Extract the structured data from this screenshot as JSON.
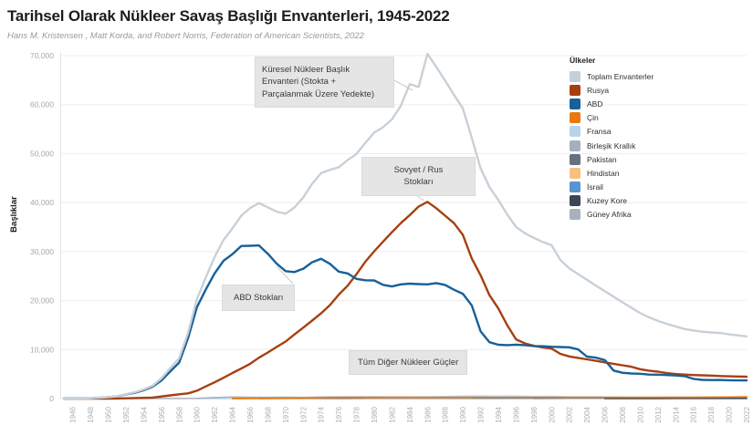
{
  "header": {
    "title": "Tarihsel Olarak Nükleer Savaş Başlığı Envanterleri, 1945-2022",
    "subtitle": "Hans M. Kristensen , Matt Korda, and Robert Norris, Federation of American Scientists, 2022"
  },
  "axes": {
    "y_label": "Başlıklar",
    "y_ticks": [
      "0",
      "10,000",
      "20,000",
      "30,000",
      "40,000",
      "50,000",
      "60,000",
      "70,000"
    ],
    "x_ticks": [
      "1946",
      "1948",
      "1950",
      "1952",
      "1954",
      "1956",
      "1958",
      "1960",
      "1962",
      "1964",
      "1966",
      "1968",
      "1970",
      "1972",
      "1974",
      "1976",
      "1978",
      "1980",
      "1982",
      "1984",
      "1986",
      "1988",
      "1990",
      "1992",
      "1994",
      "1996",
      "1998",
      "2000",
      "2002",
      "2004",
      "2006",
      "2008",
      "2010",
      "2012",
      "2014",
      "2016",
      "2018",
      "2020",
      "2022"
    ]
  },
  "legend": {
    "title": "Ülkeler"
  },
  "annotations": {
    "global": {
      "text": "Küresel Nükleer Başlık Envanteri (Stokta + Parçalanmak Üzere Yedekte)"
    },
    "soviet": {
      "text": "Sovyet / Rus Stokları"
    },
    "us": {
      "text": "ABD Stokları"
    },
    "others": {
      "text": "Tüm Diğer Nükleer Güçler"
    }
  },
  "chart_data": {
    "type": "line",
    "title": "Tarihsel Olarak Nükleer Savaş Başlığı Envanterleri, 1945-2022",
    "xlabel": "",
    "ylabel": "Başlıklar",
    "x_range": [
      1945,
      2022
    ],
    "ylim": [
      0,
      70000
    ],
    "grid": "horizontal",
    "legend_position": "right",
    "series": [
      {
        "id": "total",
        "label": "Toplam Envanterler",
        "color": "#c8d0d7",
        "width": 2.4,
        "start": 1945,
        "values": [
          2,
          9,
          13,
          50,
          171,
          304,
          463,
          891,
          1289,
          1853,
          2632,
          4128,
          6213,
          8224,
          13368,
          20253,
          24710,
          28892,
          32401,
          34714,
          37318,
          38900,
          39900,
          39040,
          38173,
          37741,
          38997,
          41074,
          43840,
          46009,
          46669,
          47214,
          48676,
          49937,
          52199,
          54308,
          55391,
          56988,
          59741,
          64200,
          63600,
          70374,
          67700,
          64900,
          62000,
          59239,
          53205,
          46963,
          43150,
          40554,
          37580,
          35026,
          33760,
          32811,
          31960,
          31294,
          28280,
          26570,
          25420,
          24237,
          23049,
          21929,
          20768,
          19640,
          18552,
          17451,
          16590,
          15850,
          15250,
          14700,
          14200,
          13890,
          13650,
          13500,
          13400,
          13100,
          12900,
          12705
        ]
      },
      {
        "id": "russia",
        "label": "Rusya",
        "color": "#a6400f",
        "width": 2.4,
        "start": 1945,
        "values": [
          0,
          0,
          0,
          0,
          1,
          5,
          25,
          50,
          120,
          150,
          200,
          426,
          660,
          869,
          1060,
          1605,
          2471,
          3322,
          4238,
          5221,
          6129,
          7089,
          8339,
          9399,
          10538,
          11643,
          13092,
          14478,
          15915,
          17385,
          19055,
          21205,
          23044,
          25393,
          27935,
          30062,
          32049,
          33952,
          35804,
          37431,
          39197,
          40159,
          38859,
          37333,
          35805,
          33417,
          28595,
          25155,
          21101,
          18399,
          14978,
          12085,
          11264,
          10764,
          10451,
          10201,
          9126,
          8600,
          8300,
          8000,
          7700,
          7400,
          7100,
          6800,
          6500,
          6000,
          5700,
          5500,
          5200,
          5000,
          4900,
          4800,
          4750,
          4700,
          4600,
          4550,
          4497,
          4477
        ]
      },
      {
        "id": "us",
        "label": "ABD",
        "color": "#17609a",
        "width": 2.4,
        "start": 1945,
        "values": [
          2,
          9,
          13,
          50,
          170,
          299,
          438,
          841,
          1169,
          1703,
          2422,
          3692,
          5543,
          7345,
          12298,
          18638,
          22229,
          25540,
          28133,
          29463,
          31139,
          31175,
          31255,
          29561,
          27552,
          26008,
          25830,
          26516,
          27835,
          28537,
          27519,
          25914,
          25542,
          24418,
          24138,
          24104,
          23208,
          22886,
          23305,
          23459,
          23368,
          23317,
          23575,
          23205,
          22217,
          21392,
          19008,
          13708,
          11511,
          10979,
          10904,
          11011,
          10903,
          10732,
          10685,
          10577,
          10526,
          10457,
          10027,
          8570,
          8360,
          7853,
          5709,
          5273,
          5113,
          5066,
          4897,
          4881,
          4804,
          4717,
          4571,
          4018,
          3822,
          3785,
          3805,
          3750,
          3708,
          3708
        ]
      },
      {
        "id": "china",
        "label": "Çin",
        "color": "#e9790e",
        "width": 1.7,
        "points": [
          [
            1964,
            1
          ],
          [
            1966,
            20
          ],
          [
            1968,
            35
          ],
          [
            1970,
            75
          ],
          [
            1972,
            100
          ],
          [
            1974,
            150
          ],
          [
            1976,
            185
          ],
          [
            1978,
            190
          ],
          [
            1980,
            205
          ],
          [
            1982,
            235
          ],
          [
            1984,
            240
          ],
          [
            1986,
            224
          ],
          [
            1988,
            230
          ],
          [
            1990,
            232
          ],
          [
            1995,
            234
          ],
          [
            2000,
            232
          ],
          [
            2005,
            235
          ],
          [
            2010,
            240
          ],
          [
            2015,
            260
          ],
          [
            2018,
            280
          ],
          [
            2020,
            320
          ],
          [
            2022,
            350
          ]
        ]
      },
      {
        "id": "france",
        "label": "Fransa",
        "color": "#b7d4ed",
        "width": 1.5,
        "points": [
          [
            1960,
            0
          ],
          [
            1964,
            4
          ],
          [
            1966,
            32
          ],
          [
            1970,
            36
          ],
          [
            1972,
            70
          ],
          [
            1974,
            145
          ],
          [
            1976,
            212
          ],
          [
            1978,
            228
          ],
          [
            1980,
            250
          ],
          [
            1982,
            274
          ],
          [
            1984,
            280
          ],
          [
            1986,
            355
          ],
          [
            1988,
            420
          ],
          [
            1990,
            505
          ],
          [
            1992,
            540
          ],
          [
            1994,
            512
          ],
          [
            1996,
            500
          ],
          [
            1998,
            450
          ],
          [
            2000,
            470
          ],
          [
            2002,
            350
          ],
          [
            2006,
            350
          ],
          [
            2010,
            300
          ],
          [
            2014,
            300
          ],
          [
            2018,
            300
          ],
          [
            2022,
            290
          ]
        ]
      },
      {
        "id": "uk",
        "label": "Birleşik Krallık",
        "color": "#a6b0bd",
        "width": 1.5,
        "points": [
          [
            1952,
            1
          ],
          [
            1954,
            5
          ],
          [
            1956,
            11
          ],
          [
            1958,
            22
          ],
          [
            1960,
            30
          ],
          [
            1962,
            205
          ],
          [
            1964,
            310
          ],
          [
            1966,
            270
          ],
          [
            1968,
            280
          ],
          [
            1970,
            280
          ],
          [
            1972,
            220
          ],
          [
            1974,
            325
          ],
          [
            1976,
            350
          ],
          [
            1980,
            350
          ],
          [
            1982,
            335
          ],
          [
            1984,
            320
          ],
          [
            1986,
            300
          ],
          [
            1990,
            300
          ],
          [
            1992,
            300
          ],
          [
            1994,
            250
          ],
          [
            1996,
            260
          ],
          [
            2000,
            280
          ],
          [
            2004,
            280
          ],
          [
            2006,
            225
          ],
          [
            2010,
            225
          ],
          [
            2014,
            215
          ],
          [
            2018,
            215
          ],
          [
            2022,
            225
          ]
        ]
      },
      {
        "id": "pakistan",
        "label": "Pakistan",
        "color": "#667180",
        "width": 1.5,
        "points": [
          [
            1998,
            5
          ],
          [
            2000,
            15
          ],
          [
            2002,
            28
          ],
          [
            2004,
            40
          ],
          [
            2006,
            55
          ],
          [
            2008,
            70
          ],
          [
            2010,
            90
          ],
          [
            2012,
            105
          ],
          [
            2014,
            120
          ],
          [
            2016,
            135
          ],
          [
            2018,
            150
          ],
          [
            2020,
            160
          ],
          [
            2022,
            165
          ]
        ]
      },
      {
        "id": "india",
        "label": "Hindistan",
        "color": "#f7c080",
        "width": 1.5,
        "points": [
          [
            1974,
            1
          ],
          [
            1980,
            3
          ],
          [
            1986,
            5
          ],
          [
            1990,
            7
          ],
          [
            1994,
            12
          ],
          [
            1998,
            16
          ],
          [
            2000,
            25
          ],
          [
            2002,
            35
          ],
          [
            2004,
            45
          ],
          [
            2006,
            55
          ],
          [
            2008,
            65
          ],
          [
            2010,
            80
          ],
          [
            2012,
            95
          ],
          [
            2014,
            105
          ],
          [
            2016,
            120
          ],
          [
            2018,
            135
          ],
          [
            2020,
            150
          ],
          [
            2022,
            160
          ]
        ]
      },
      {
        "id": "israel",
        "label": "İsrail",
        "color": "#5695cf",
        "width": 1.5,
        "points": [
          [
            1967,
            8
          ],
          [
            1970,
            15
          ],
          [
            1974,
            25
          ],
          [
            1978,
            32
          ],
          [
            1982,
            42
          ],
          [
            1986,
            50
          ],
          [
            1990,
            58
          ],
          [
            1994,
            65
          ],
          [
            1998,
            72
          ],
          [
            2002,
            78
          ],
          [
            2006,
            80
          ],
          [
            2010,
            80
          ],
          [
            2014,
            80
          ],
          [
            2018,
            85
          ],
          [
            2022,
            90
          ]
        ]
      },
      {
        "id": "northkorea",
        "label": "Kuzey Kore",
        "color": "#3b4554",
        "width": 1.5,
        "points": [
          [
            2006,
            1
          ],
          [
            2008,
            3
          ],
          [
            2010,
            5
          ],
          [
            2012,
            8
          ],
          [
            2014,
            10
          ],
          [
            2016,
            15
          ],
          [
            2018,
            18
          ],
          [
            2020,
            20
          ],
          [
            2022,
            20
          ]
        ]
      },
      {
        "id": "southafrica",
        "label": "Güney Afrika",
        "color": "#a8b2bf",
        "width": 1.5,
        "points": [
          [
            1979,
            1
          ],
          [
            1982,
            3
          ],
          [
            1985,
            4
          ],
          [
            1988,
            6
          ],
          [
            1989,
            6
          ],
          [
            1990,
            3
          ],
          [
            1991,
            0
          ]
        ]
      }
    ]
  }
}
